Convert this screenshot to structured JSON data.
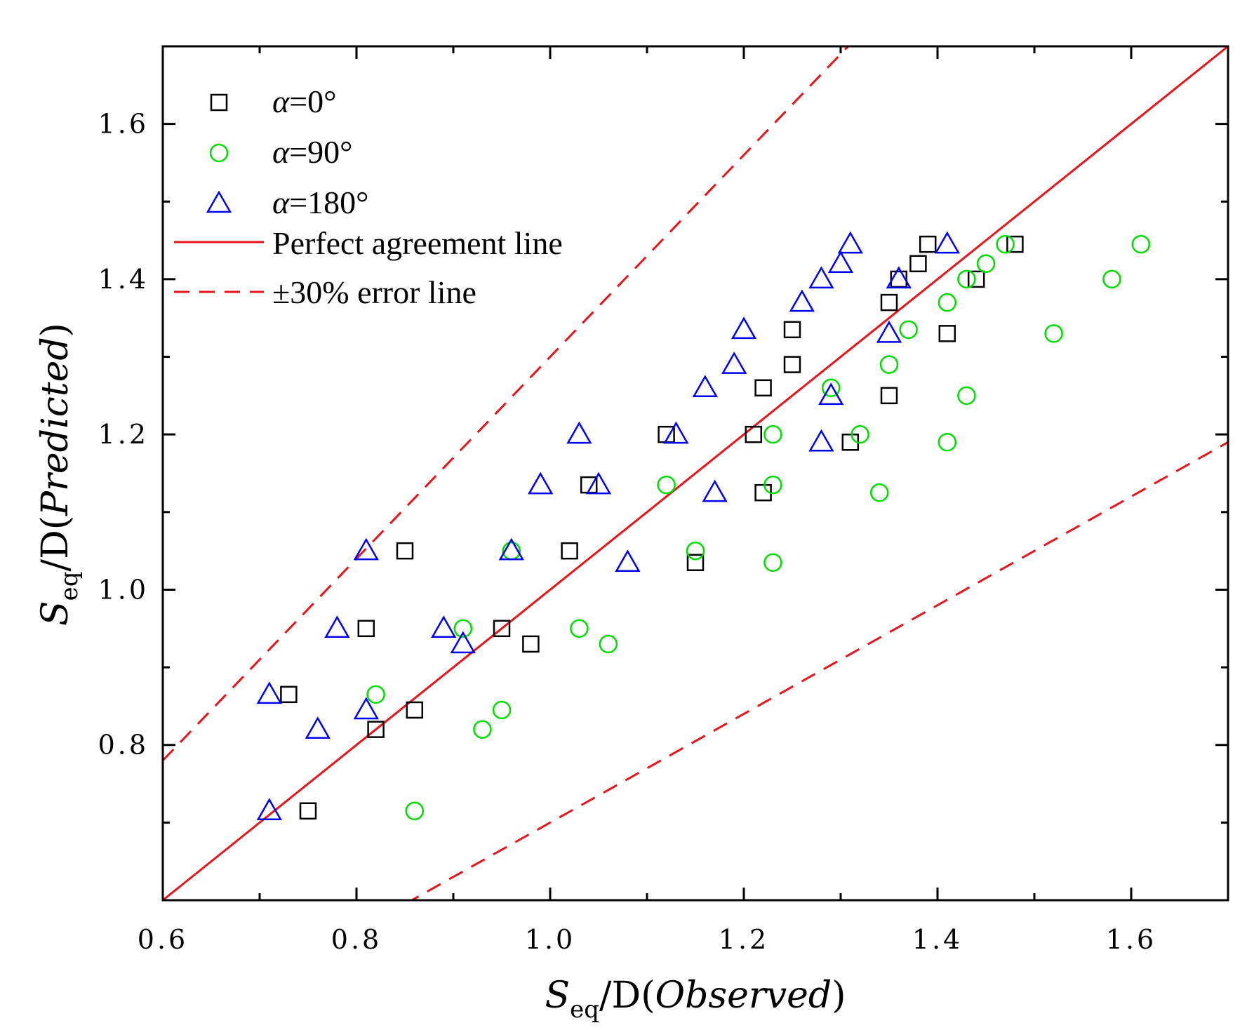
{
  "chart_data": {
    "type": "scatter",
    "title": "",
    "xlabel": {
      "main": "S",
      "sub": "eq",
      "rest": "/D(",
      "paren": "Observed",
      "close": ")"
    },
    "ylabel": {
      "main": "S",
      "sub": "eq",
      "rest": "/D(",
      "paren": "Predicted",
      "close": ")"
    },
    "xlim": [
      0.6,
      1.7
    ],
    "ylim": [
      0.6,
      1.7
    ],
    "xticks": [
      0.6,
      0.8,
      1.0,
      1.2,
      1.4,
      1.6
    ],
    "xtick_labels": [
      "0.6",
      "0.8",
      "1.0",
      "1.2",
      "1.4",
      "1.6"
    ],
    "yticks": [
      0.8,
      1.0,
      1.2,
      1.4,
      1.6
    ],
    "ytick_labels": [
      "0.8",
      "1.0",
      "1.2",
      "1.4",
      "1.6"
    ],
    "minor_ticks": [
      0.7,
      0.9,
      1.1,
      1.3,
      1.5,
      1.7
    ],
    "legend_position": "top-left",
    "series": [
      {
        "name": "α=0°",
        "alpha_symbol": "α",
        "value_text": "=0°",
        "marker": "square",
        "color": "#000000",
        "points": [
          [
            0.73,
            0.865
          ],
          [
            0.75,
            0.715
          ],
          [
            0.81,
            0.95
          ],
          [
            0.82,
            0.82
          ],
          [
            0.85,
            1.05
          ],
          [
            0.86,
            0.845
          ],
          [
            0.95,
            0.95
          ],
          [
            0.98,
            0.93
          ],
          [
            1.02,
            1.05
          ],
          [
            1.04,
            1.135
          ],
          [
            1.12,
            1.2
          ],
          [
            1.15,
            1.035
          ],
          [
            1.21,
            1.2
          ],
          [
            1.22,
            1.125
          ],
          [
            1.22,
            1.26
          ],
          [
            1.25,
            1.29
          ],
          [
            1.25,
            1.335
          ],
          [
            1.31,
            1.19
          ],
          [
            1.35,
            1.25
          ],
          [
            1.35,
            1.37
          ],
          [
            1.36,
            1.4
          ],
          [
            1.38,
            1.42
          ],
          [
            1.39,
            1.445
          ],
          [
            1.41,
            1.33
          ],
          [
            1.44,
            1.4
          ],
          [
            1.48,
            1.445
          ]
        ]
      },
      {
        "name": "α=90°",
        "alpha_symbol": "α",
        "value_text": "=90°",
        "marker": "circle",
        "color": "#00dd00",
        "points": [
          [
            0.82,
            0.865
          ],
          [
            0.86,
            0.715
          ],
          [
            0.91,
            0.95
          ],
          [
            0.93,
            0.82
          ],
          [
            0.95,
            0.845
          ],
          [
            0.96,
            1.05
          ],
          [
            1.03,
            0.95
          ],
          [
            1.06,
            0.93
          ],
          [
            1.12,
            1.135
          ],
          [
            1.15,
            1.05
          ],
          [
            1.23,
            1.2
          ],
          [
            1.23,
            1.135
          ],
          [
            1.23,
            1.035
          ],
          [
            1.29,
            1.26
          ],
          [
            1.32,
            1.2
          ],
          [
            1.34,
            1.125
          ],
          [
            1.35,
            1.29
          ],
          [
            1.37,
            1.335
          ],
          [
            1.41,
            1.37
          ],
          [
            1.41,
            1.19
          ],
          [
            1.43,
            1.25
          ],
          [
            1.43,
            1.4
          ],
          [
            1.45,
            1.42
          ],
          [
            1.47,
            1.445
          ],
          [
            1.52,
            1.33
          ],
          [
            1.58,
            1.4
          ],
          [
            1.61,
            1.445
          ]
        ]
      },
      {
        "name": "α=180°",
        "alpha_symbol": "α",
        "value_text": "=180°",
        "marker": "triangle",
        "color": "#0000ee",
        "points": [
          [
            0.71,
            0.865
          ],
          [
            0.71,
            0.715
          ],
          [
            0.76,
            0.82
          ],
          [
            0.78,
            0.95
          ],
          [
            0.81,
            0.845
          ],
          [
            0.81,
            1.05
          ],
          [
            0.89,
            0.95
          ],
          [
            0.91,
            0.93
          ],
          [
            0.96,
            1.05
          ],
          [
            0.99,
            1.135
          ],
          [
            1.03,
            1.2
          ],
          [
            1.05,
            1.135
          ],
          [
            1.08,
            1.035
          ],
          [
            1.13,
            1.2
          ],
          [
            1.16,
            1.26
          ],
          [
            1.17,
            1.125
          ],
          [
            1.19,
            1.29
          ],
          [
            1.2,
            1.335
          ],
          [
            1.26,
            1.37
          ],
          [
            1.28,
            1.4
          ],
          [
            1.28,
            1.19
          ],
          [
            1.29,
            1.25
          ],
          [
            1.3,
            1.42
          ],
          [
            1.31,
            1.445
          ],
          [
            1.35,
            1.33
          ],
          [
            1.36,
            1.4
          ],
          [
            1.41,
            1.445
          ]
        ]
      }
    ],
    "lines": [
      {
        "name": "Perfect agreement line",
        "style": "solid",
        "color": "#e8141c",
        "slope": 1.0
      },
      {
        "name": "±30% error line",
        "style": "dashed",
        "color": "#e8141c",
        "slope": [
          1.3,
          0.7
        ]
      }
    ]
  }
}
